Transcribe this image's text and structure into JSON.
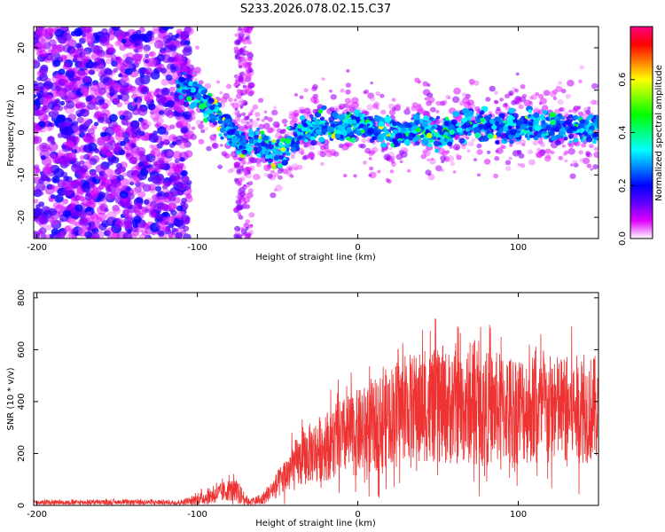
{
  "title": "S233.2026.078.02.15.C37",
  "chart_data": [
    {
      "type": "heatmap",
      "name": "spectrogram",
      "xlabel": "Height of straight line (km)",
      "ylabel": "Frequency (Hz)",
      "xlim": [
        -202,
        150
      ],
      "ylim": [
        -25,
        25
      ],
      "xticks": [
        -200,
        -100,
        0,
        100
      ],
      "yticks": [
        -20,
        -10,
        0,
        10,
        20
      ],
      "colorbar": {
        "label": "Normalized spectral amplitude",
        "range": [
          0,
          0.8
        ],
        "ticks": [
          "0.0",
          "0.2",
          "0.4",
          "0.6"
        ],
        "tick_values": [
          0,
          0.2,
          0.4,
          0.6
        ],
        "colors": [
          "#ffffff",
          "#e000ff",
          "#6000ff",
          "#0000ff",
          "#0080ff",
          "#00ffff",
          "#00ff80",
          "#00ff00",
          "#80ff00",
          "#ffff00",
          "#ff8000",
          "#ff0000",
          "#ff0080"
        ]
      },
      "ridge_points": [
        [
          -110,
          11
        ],
        [
          -100,
          9
        ],
        [
          -95,
          7
        ],
        [
          -90,
          5
        ],
        [
          -85,
          3
        ],
        [
          -80,
          1
        ],
        [
          -75,
          -2
        ],
        [
          -70,
          -3
        ],
        [
          -65,
          -2
        ],
        [
          -60,
          -3
        ],
        [
          -55,
          -4
        ],
        [
          -50,
          -5
        ],
        [
          -45,
          -4
        ],
        [
          -40,
          -1
        ],
        [
          -30,
          1
        ],
        [
          -20,
          2
        ],
        [
          -10,
          1
        ],
        [
          0,
          2
        ],
        [
          10,
          1
        ],
        [
          20,
          0
        ],
        [
          30,
          0
        ],
        [
          40,
          1
        ],
        [
          50,
          0
        ],
        [
          60,
          1
        ],
        [
          70,
          2
        ],
        [
          80,
          1
        ],
        [
          90,
          1
        ],
        [
          100,
          2
        ],
        [
          110,
          2
        ],
        [
          120,
          2
        ],
        [
          130,
          1
        ],
        [
          140,
          1
        ],
        [
          150,
          1
        ]
      ]
    },
    {
      "type": "line",
      "name": "snr",
      "xlabel": "Height of straight line (km)",
      "ylabel": "SNR (10 * v/v)",
      "xlim": [
        -202,
        150
      ],
      "ylim": [
        0,
        820
      ],
      "xticks": [
        -200,
        -100,
        0,
        100
      ],
      "yticks": [
        0,
        200,
        400,
        600,
        800
      ],
      "color": "#ee3333",
      "envelope": [
        [
          -202,
          12
        ],
        [
          -150,
          12
        ],
        [
          -110,
          12
        ],
        [
          -95,
          30
        ],
        [
          -80,
          60
        ],
        [
          -75,
          50
        ],
        [
          -68,
          15
        ],
        [
          -60,
          20
        ],
        [
          -50,
          80
        ],
        [
          -40,
          150
        ],
        [
          -30,
          200
        ],
        [
          -20,
          230
        ],
        [
          -10,
          260
        ],
        [
          0,
          280
        ],
        [
          10,
          300
        ],
        [
          20,
          350
        ],
        [
          30,
          380
        ],
        [
          50,
          380
        ],
        [
          80,
          375
        ],
        [
          100,
          375
        ],
        [
          120,
          370
        ],
        [
          150,
          370
        ]
      ],
      "noise_amplitude": [
        [
          -202,
          10
        ],
        [
          -110,
          12
        ],
        [
          -95,
          35
        ],
        [
          -75,
          60
        ],
        [
          -68,
          15
        ],
        [
          -55,
          40
        ],
        [
          -40,
          120
        ],
        [
          -20,
          170
        ],
        [
          0,
          210
        ],
        [
          20,
          240
        ],
        [
          50,
          280
        ],
        [
          100,
          270
        ],
        [
          150,
          260
        ]
      ]
    }
  ]
}
